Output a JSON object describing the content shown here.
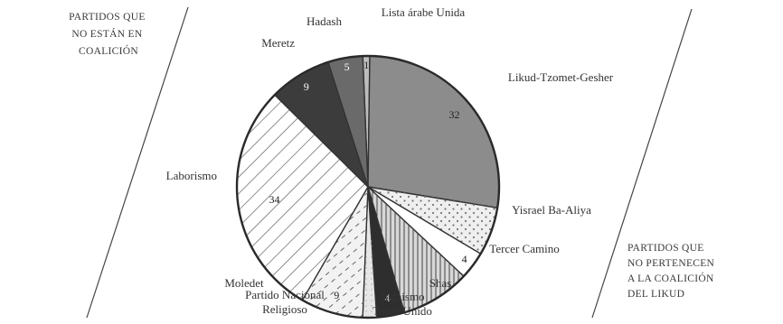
{
  "notes": {
    "left": [
      "PARTIDOS QUE",
      "NO ESTÁN EN",
      "COALICIÓN"
    ],
    "right": [
      "PARTIDOS QUE",
      "NO PERTENECEN",
      "A LA COALICIÓN",
      "DEL LIKUD"
    ]
  },
  "chart_data": {
    "type": "pie",
    "slices": [
      {
        "label": "Lista árabe Unida",
        "value": 1,
        "value_label": "1",
        "fill": "#bdbdbd"
      },
      {
        "label": "Likud-Tzomet-Gesher",
        "value": 32,
        "value_label": "32",
        "fill": "#8c8c8c"
      },
      {
        "label": "Yisrael Ba-Aliya",
        "value": 7,
        "value_label": "",
        "fill": "#efefef"
      },
      {
        "label": "Tercer Camino",
        "value": 4,
        "value_label": "4",
        "fill": "#ffffff"
      },
      {
        "label": "Shas",
        "value": 10,
        "value_label": "",
        "fill": "#d8d8d8"
      },
      {
        "label": "Judaísmo Torah Unido",
        "value": 4,
        "value_label": "4",
        "fill": "#2e2e2e"
      },
      {
        "label": "Moledet",
        "value": 2,
        "value_label": "",
        "fill": "#e6e6e6"
      },
      {
        "label": "Partido Nacional Religioso",
        "value": 9,
        "value_label": "9",
        "fill": "#f2f2f2"
      },
      {
        "label": "Laborismo",
        "value": 34,
        "value_label": "34",
        "fill": "#ffffff"
      },
      {
        "label": "Meretz",
        "value": 9,
        "value_label": "9",
        "fill": "#3c3c3c"
      },
      {
        "label": "Hadash",
        "value": 5,
        "value_label": "5",
        "fill": "#6a6a6a"
      }
    ]
  }
}
